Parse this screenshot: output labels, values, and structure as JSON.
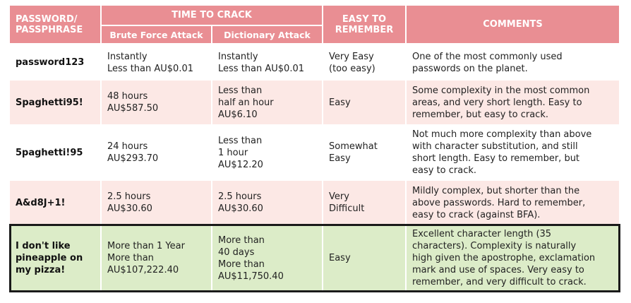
{
  "headers": {
    "password": [
      "PASSWORD/",
      "PASSPHRASE"
    ],
    "time_to_crack": "TIME TO CRACK",
    "brute_force": "Brute Force Attack",
    "dictionary": "Dictionary Attack",
    "easy": [
      "EASY TO",
      "REMEMBER"
    ],
    "comments": "COMMENTS"
  },
  "rows": [
    {
      "password": [
        "password123"
      ],
      "brute": [
        "Instantly",
        "Less than AU$0.01"
      ],
      "dict": [
        "Instantly",
        "Less than AU$0.01"
      ],
      "easy": [
        "Very Easy",
        "(too easy)"
      ],
      "comment": [
        "One of the most commonly used",
        "passwords on the planet."
      ]
    },
    {
      "password": [
        "Spaghetti95!"
      ],
      "brute": [
        "48 hours",
        "AU$587.50"
      ],
      "dict": [
        "Less than",
        "half an hour",
        "AU$6.10"
      ],
      "easy": [
        "Easy"
      ],
      "comment": [
        "Some complexity in the most common",
        "areas, and very short length. Easy to",
        "remember, but easy to crack."
      ]
    },
    {
      "password": [
        "5paghetti!95"
      ],
      "brute": [
        "24 hours",
        "AU$293.70"
      ],
      "dict": [
        "Less than",
        "1 hour",
        "AU$12.20"
      ],
      "easy": [
        "Somewhat",
        "Easy"
      ],
      "comment": [
        "Not much more complexity than above",
        "with character substitution, and still",
        "short length. Easy to remember, but",
        "easy to crack."
      ]
    },
    {
      "password": [
        "A&d8J+1!"
      ],
      "brute": [
        "2.5 hours",
        "AU$30.60"
      ],
      "dict": [
        "2.5 hours",
        "AU$30.60"
      ],
      "easy": [
        "Very",
        "Difficult"
      ],
      "comment": [
        "Mildly complex, but shorter than the",
        "above passwords. Hard to remember,",
        "easy to crack (against BFA)."
      ]
    },
    {
      "password": [
        "I don't like",
        "pineapple on",
        "my pizza!"
      ],
      "brute": [
        "More than 1 Year",
        "More than",
        "AU$107,222.40"
      ],
      "dict": [
        "More than",
        "40 days",
        "More than",
        "AU$11,750.40"
      ],
      "easy": [
        "Easy"
      ],
      "comment": [
        "Excellent character length (35",
        "characters). Complexity is naturally",
        "high given the apostrophe, exclamation",
        "mark and use of spaces. Very easy to",
        "remember, and very difficult to crack."
      ]
    }
  ]
}
